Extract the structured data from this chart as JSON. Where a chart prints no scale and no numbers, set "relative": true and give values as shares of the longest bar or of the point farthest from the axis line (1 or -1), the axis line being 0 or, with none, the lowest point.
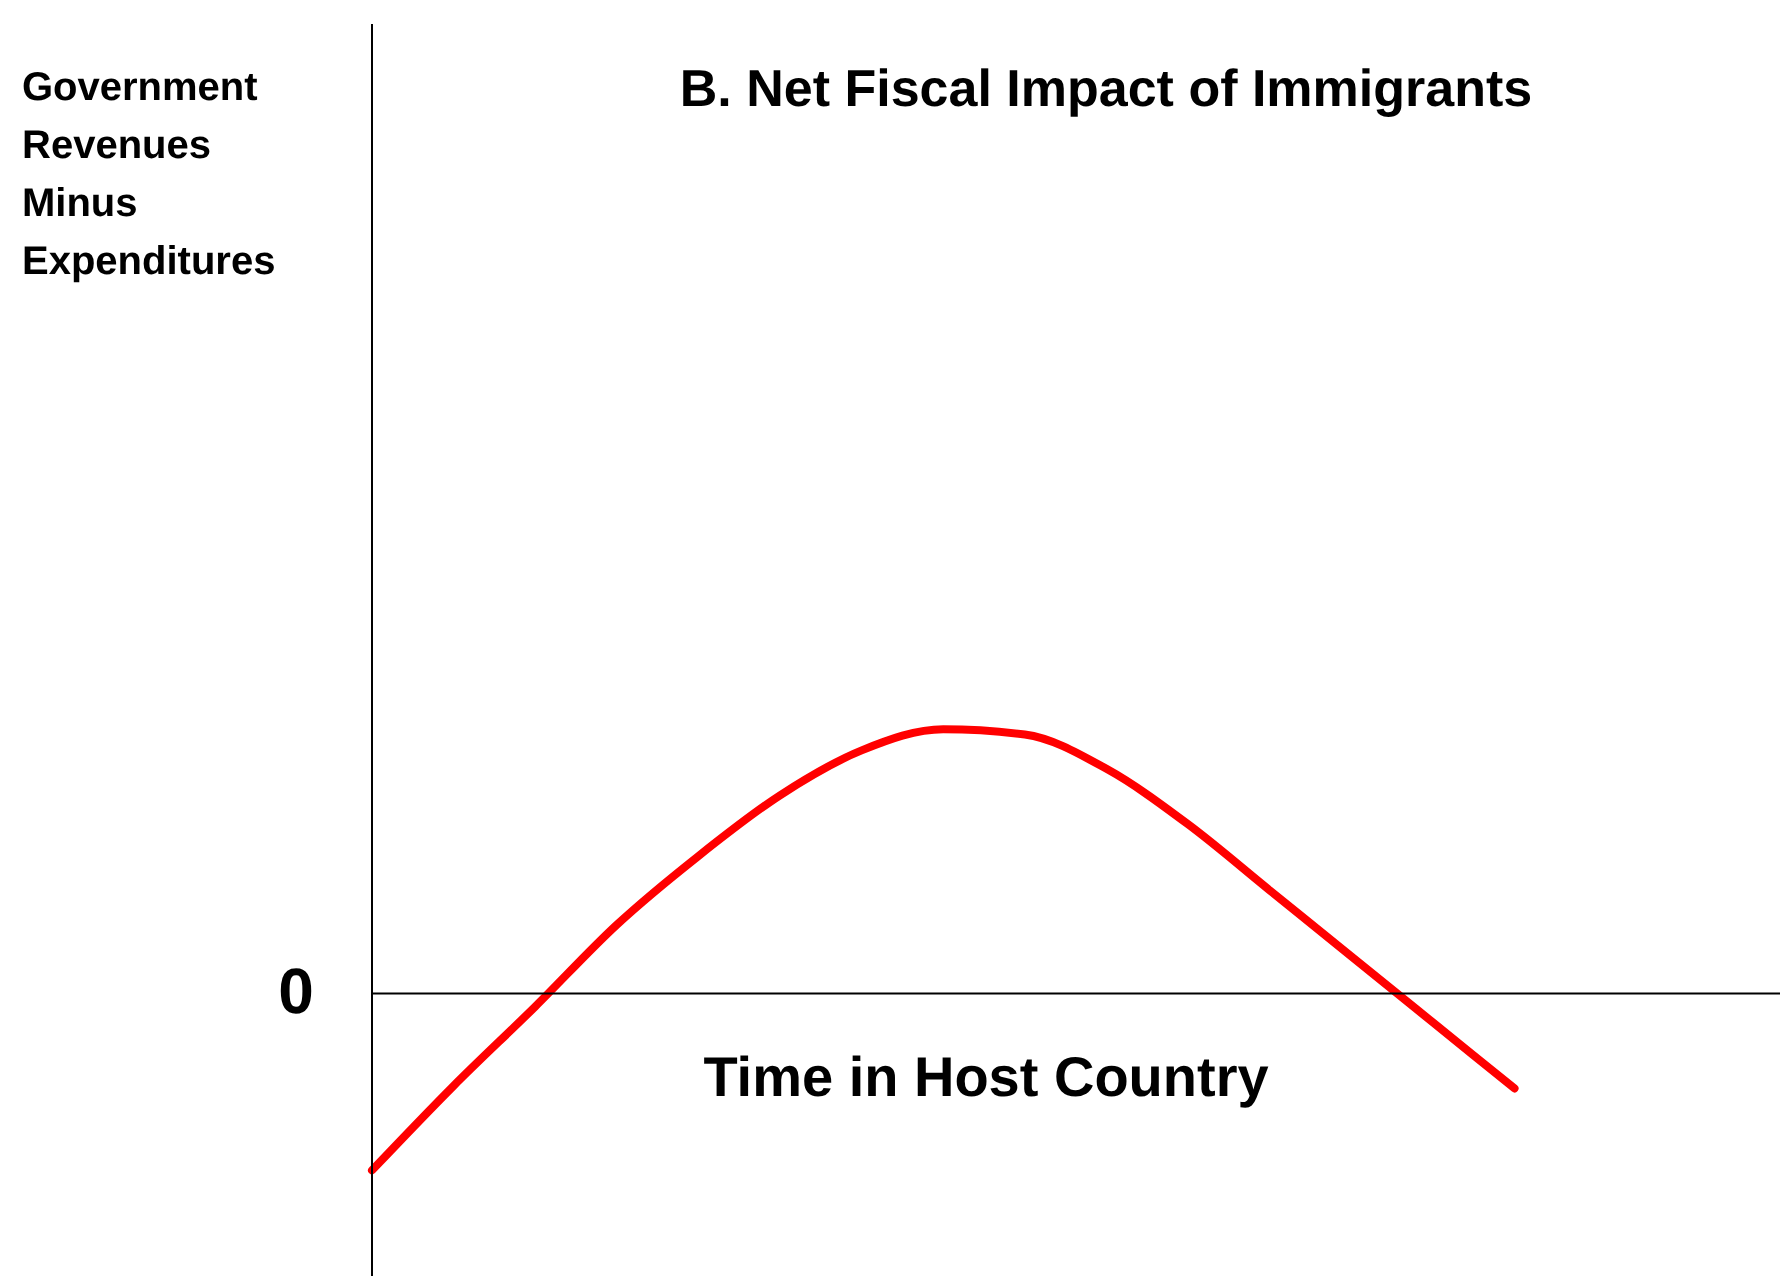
{
  "chart_data": {
    "type": "line",
    "title": "B. Net Fiscal Impact of Immigrants",
    "xlabel": "Time in Host Country",
    "relative": true,
    "color": "#ff0000",
    "marker": "none",
    "grid": false,
    "categories": [
      null,
      null,
      null,
      null,
      null,
      null,
      null,
      null,
      null,
      null,
      null,
      null,
      null,
      null,
      null,
      null,
      null,
      null
    ],
    "values": [
      -0.67,
      -0.35,
      -0.05,
      0.26,
      0.52,
      0.75,
      0.92,
      1.0,
      0.98,
      0.85,
      0.64,
      0.39,
      0.14,
      -0.11,
      -0.36,
      null,
      null,
      null
    ],
    "annotations": [
      "Government Revenues Minus Expenditures",
      "0"
    ]
  }
}
